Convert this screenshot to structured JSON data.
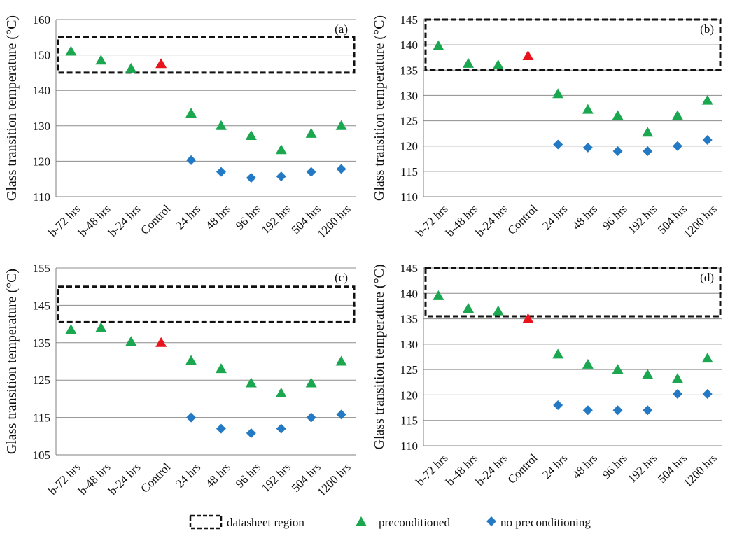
{
  "colors": {
    "preconditioned": "#1aa750",
    "control": "#e8131b",
    "no_preconditioning": "#2379c4",
    "gridline": "#8c8c8c",
    "axis": "#7f7f7f",
    "datasheet_box": "#111111"
  },
  "legend": {
    "datasheet": "datasheet region",
    "preconditioned": "preconditioned",
    "no_preconditioning": "no preconditioning"
  },
  "chart_data": [
    {
      "type": "scatter",
      "panel": "(a)",
      "ylabel": "Glass transition temperature (°C)",
      "categories": [
        "b-72 hrs",
        "b-48 hrs",
        "b-24 hrs",
        "Control",
        "24 hrs",
        "48 hrs",
        "96 hrs",
        "192 hrs",
        "504 hrs",
        "1200 hrs"
      ],
      "ylim": [
        110,
        160
      ],
      "yticks": [
        110,
        120,
        130,
        140,
        150,
        160
      ],
      "datasheet_region": [
        145,
        155
      ],
      "series": [
        {
          "name": "preconditioned",
          "values": [
            151,
            148.5,
            146.2,
            null,
            133.5,
            130,
            127.2,
            123.2,
            127.8,
            130
          ]
        },
        {
          "name": "control",
          "values": [
            null,
            null,
            null,
            147.5,
            null,
            null,
            null,
            null,
            null,
            null
          ]
        },
        {
          "name": "no preconditioning",
          "values": [
            null,
            null,
            null,
            null,
            120.3,
            117,
            115.3,
            115.7,
            117,
            117.8
          ]
        }
      ]
    },
    {
      "type": "scatter",
      "panel": "(b)",
      "ylabel": "Glass transition temperature (°C)",
      "categories": [
        "b-72 hrs",
        "b-48 hrs",
        "b-24 hrs",
        "Control",
        "24 hrs",
        "48 hrs",
        "96 hrs",
        "192 hrs",
        "504 hrs",
        "1200 hrs"
      ],
      "ylim": [
        110,
        145
      ],
      "yticks": [
        110,
        115,
        120,
        125,
        130,
        135,
        140,
        145
      ],
      "datasheet_region": [
        135,
        145
      ],
      "series": [
        {
          "name": "preconditioned",
          "values": [
            139.8,
            136.3,
            136,
            null,
            130.3,
            127.2,
            126,
            122.7,
            126,
            129
          ]
        },
        {
          "name": "control",
          "values": [
            null,
            null,
            null,
            137.8,
            null,
            null,
            null,
            null,
            null,
            null
          ]
        },
        {
          "name": "no preconditioning",
          "values": [
            null,
            null,
            null,
            null,
            120.3,
            119.7,
            119,
            119,
            120,
            121.2
          ]
        }
      ]
    },
    {
      "type": "scatter",
      "panel": "(c)",
      "ylabel": "Glass transition temperature (°C)",
      "categories": [
        "b-72 hrs",
        "b-48 hrs",
        "b-24 hrs",
        "Control",
        "24 hrs",
        "48 hrs",
        "96 hrs",
        "192 hrs",
        "504 hrs",
        "1200 hrs"
      ],
      "ylim": [
        105,
        155
      ],
      "yticks": [
        105,
        115,
        125,
        135,
        145,
        155
      ],
      "datasheet_region": [
        140.5,
        150
      ],
      "series": [
        {
          "name": "preconditioned",
          "values": [
            138.5,
            139,
            135.3,
            null,
            130.2,
            128,
            124.2,
            121.5,
            124.2,
            130
          ]
        },
        {
          "name": "control",
          "values": [
            null,
            null,
            null,
            135,
            null,
            null,
            null,
            null,
            null,
            null
          ]
        },
        {
          "name": "no preconditioning",
          "values": [
            null,
            null,
            null,
            null,
            115,
            112,
            110.8,
            112,
            115,
            115.8
          ]
        }
      ]
    },
    {
      "type": "scatter",
      "panel": "(d)",
      "ylabel": "Glass transition temperature (°C)",
      "categories": [
        "b-72 hrs",
        "b-48 hrs",
        "b-24 hrs",
        "Control",
        "24 hrs",
        "48 hrs",
        "96 hrs",
        "192 hrs",
        "504 hrs",
        "1200 hrs"
      ],
      "ylim": [
        110,
        145
      ],
      "yticks": [
        110,
        115,
        120,
        125,
        130,
        135,
        140,
        145
      ],
      "datasheet_region": [
        135.5,
        145
      ],
      "series": [
        {
          "name": "preconditioned",
          "values": [
            139.5,
            137,
            136.5,
            null,
            128,
            126,
            125,
            124,
            123.2,
            127.2
          ]
        },
        {
          "name": "control",
          "values": [
            null,
            null,
            null,
            135,
            null,
            null,
            null,
            null,
            null,
            null
          ]
        },
        {
          "name": "no preconditioning",
          "values": [
            null,
            null,
            null,
            null,
            118,
            117,
            117,
            117,
            120.2,
            120.2
          ]
        }
      ]
    }
  ]
}
